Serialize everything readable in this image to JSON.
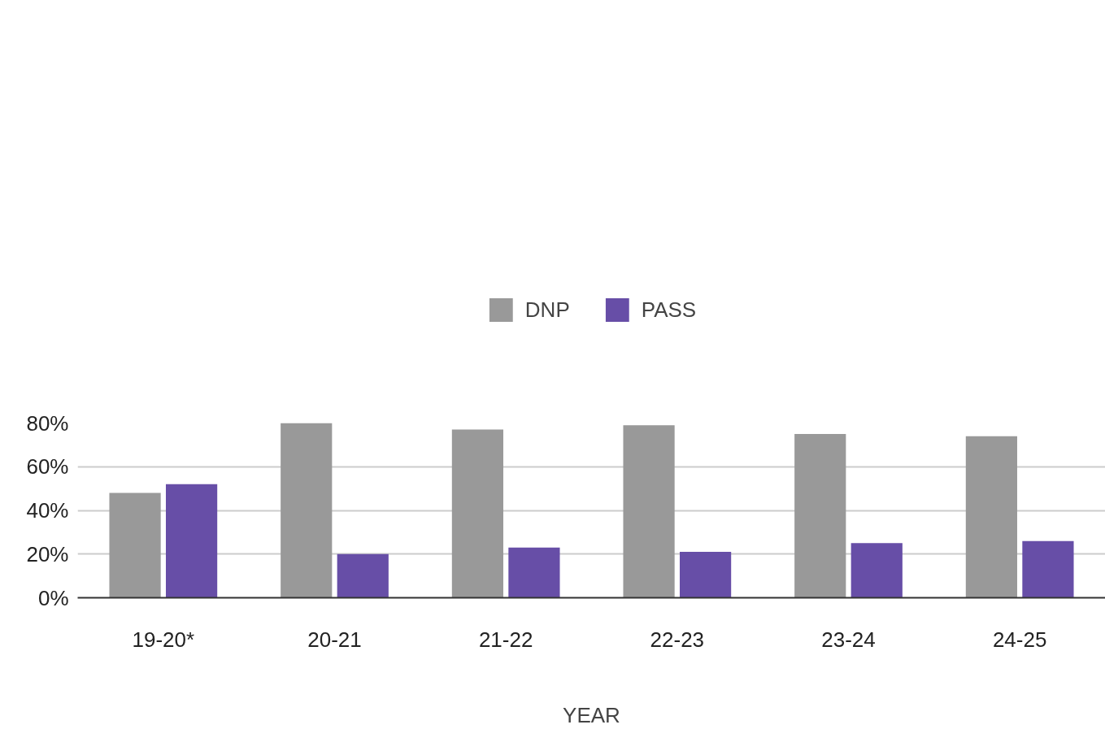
{
  "chart_data": {
    "type": "bar",
    "xlabel": "YEAR",
    "categories": [
      "19-20*",
      "20-21",
      "21-22",
      "22-23",
      "23-24",
      "24-25"
    ],
    "series": [
      {
        "name": "DNP",
        "color": "#999999",
        "values": [
          48,
          80,
          77,
          79,
          75,
          74
        ]
      },
      {
        "name": "PASS",
        "color": "#674ea7",
        "values": [
          52,
          20,
          23,
          21,
          25,
          26
        ]
      }
    ],
    "ylim": [
      0,
      80
    ],
    "yticks": [
      {
        "value": 0,
        "label": "0%"
      },
      {
        "value": 20,
        "label": "20%"
      },
      {
        "value": 40,
        "label": "40%"
      },
      {
        "value": 60,
        "label": "60%"
      },
      {
        "value": 80,
        "label": "80%"
      }
    ],
    "grid": "y",
    "legend": "top"
  }
}
